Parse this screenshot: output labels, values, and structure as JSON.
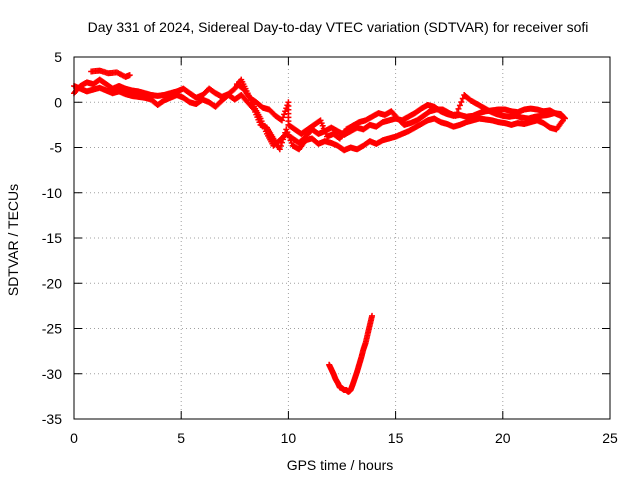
{
  "chart_data": {
    "type": "scatter",
    "title": "Day 331 of 2024, Sidereal Day-to-day VTEC variation (SDTVAR) for receiver sofi",
    "xlabel": "GPS time / hours",
    "ylabel": "SDTVAR / TECUs",
    "xlim": [
      0,
      25
    ],
    "ylim": [
      -35,
      5
    ],
    "xticks": [
      0,
      5,
      10,
      15,
      20,
      25
    ],
    "yticks": [
      5,
      0,
      -5,
      -10,
      -15,
      -20,
      -25,
      -30,
      -35
    ],
    "xtick_labels": [
      "0",
      "5",
      "10",
      "15",
      "20",
      "25"
    ],
    "ytick_labels": [
      "5",
      "0",
      "-5",
      "-10",
      "-15",
      "-20",
      "-25",
      "-30",
      "-35"
    ],
    "grid": true,
    "marker": "+",
    "series_color": "#ff0000",
    "series": [
      {
        "name": "track-a",
        "points": [
          [
            0.0,
            1.0
          ],
          [
            0.3,
            1.8
          ],
          [
            0.6,
            2.2
          ],
          [
            0.9,
            2.0
          ],
          [
            1.2,
            2.5
          ],
          [
            1.5,
            2.0
          ],
          [
            1.8,
            1.5
          ],
          [
            2.1,
            1.8
          ],
          [
            2.4,
            1.5
          ],
          [
            2.7,
            1.3
          ],
          [
            3.0,
            1.2
          ],
          [
            3.3,
            1.0
          ],
          [
            3.6,
            0.8
          ],
          [
            3.9,
            0.7
          ],
          [
            4.2,
            0.8
          ],
          [
            4.5,
            1.0
          ],
          [
            4.8,
            1.2
          ],
          [
            5.1,
            1.5
          ],
          [
            5.4,
            1.0
          ],
          [
            5.7,
            0.5
          ],
          [
            6.0,
            0.8
          ],
          [
            6.3,
            1.5
          ],
          [
            6.6,
            1.0
          ],
          [
            6.9,
            0.6
          ],
          [
            7.2,
            0.9
          ],
          [
            7.5,
            1.5
          ],
          [
            7.8,
            2.5
          ],
          [
            8.1,
            1.0
          ],
          [
            8.4,
            -0.5
          ],
          [
            8.7,
            -1.8
          ],
          [
            9.0,
            -3.5
          ],
          [
            9.3,
            -4.8
          ],
          [
            9.6,
            -4.2
          ],
          [
            9.9,
            -3.5
          ],
          [
            10.2,
            -4.0
          ],
          [
            10.5,
            -4.5
          ],
          [
            10.8,
            -3.8
          ],
          [
            11.1,
            -3.0
          ],
          [
            11.4,
            -3.5
          ],
          [
            11.7,
            -3.2
          ],
          [
            12.0,
            -2.8
          ],
          [
            12.3,
            -3.2
          ],
          [
            12.6,
            -3.6
          ],
          [
            12.9,
            -3.2
          ],
          [
            13.2,
            -2.8
          ],
          [
            13.5,
            -3.0
          ],
          [
            13.8,
            -2.5
          ],
          [
            14.1,
            -2.7
          ],
          [
            14.4,
            -2.2
          ],
          [
            14.7,
            -2.0
          ],
          [
            15.0,
            -1.8
          ],
          [
            15.3,
            -2.0
          ],
          [
            15.6,
            -1.6
          ],
          [
            15.9,
            -1.2
          ],
          [
            16.2,
            -0.7
          ],
          [
            16.5,
            -0.3
          ],
          [
            16.8,
            -0.5
          ],
          [
            17.1,
            -1.0
          ],
          [
            17.4,
            -1.3
          ],
          [
            17.7,
            -1.5
          ],
          [
            18.0,
            -1.4
          ],
          [
            18.3,
            -1.6
          ],
          [
            18.6,
            -1.5
          ],
          [
            18.9,
            -1.2
          ],
          [
            19.2,
            -1.0
          ],
          [
            19.5,
            -0.9
          ],
          [
            19.8,
            -0.8
          ],
          [
            20.1,
            -0.8
          ],
          [
            20.4,
            -1.0
          ],
          [
            20.7,
            -1.1
          ],
          [
            21.0,
            -0.8
          ],
          [
            21.3,
            -0.7
          ],
          [
            21.6,
            -0.8
          ],
          [
            21.9,
            -1.0
          ],
          [
            22.2,
            -0.9
          ],
          [
            22.5,
            -1.3
          ],
          [
            22.8,
            -1.6
          ]
        ]
      },
      {
        "name": "track-b",
        "points": [
          [
            0.0,
            1.8
          ],
          [
            0.3,
            1.5
          ],
          [
            0.6,
            1.2
          ],
          [
            0.9,
            1.4
          ],
          [
            1.2,
            1.6
          ],
          [
            1.5,
            1.3
          ],
          [
            1.8,
            1.0
          ],
          [
            2.1,
            1.2
          ],
          [
            2.4,
            0.9
          ],
          [
            2.7,
            0.7
          ],
          [
            3.0,
            0.6
          ],
          [
            3.3,
            0.5
          ],
          [
            3.6,
            0.3
          ],
          [
            3.9,
            -0.3
          ],
          [
            4.2,
            0.2
          ],
          [
            4.5,
            0.5
          ],
          [
            4.8,
            0.8
          ],
          [
            5.1,
            0.5
          ],
          [
            5.4,
            0.0
          ],
          [
            5.7,
            -0.2
          ],
          [
            6.0,
            0.3
          ],
          [
            6.3,
            0.0
          ],
          [
            6.6,
            -0.5
          ],
          [
            6.9,
            0.2
          ],
          [
            7.2,
            0.8
          ],
          [
            7.5,
            0.3
          ],
          [
            7.8,
            0.8
          ],
          [
            8.1,
            0.0
          ],
          [
            8.4,
            -0.8
          ],
          [
            8.7,
            -2.5
          ],
          [
            9.0,
            -2.8
          ],
          [
            9.3,
            -4.0
          ],
          [
            9.6,
            -5.2
          ],
          [
            9.9,
            -3.0
          ],
          [
            10.2,
            -4.8
          ],
          [
            10.5,
            -5.2
          ],
          [
            10.8,
            -4.2
          ],
          [
            11.1,
            -4.0
          ],
          [
            11.4,
            -4.6
          ],
          [
            11.7,
            -4.3
          ],
          [
            12.0,
            -4.5
          ],
          [
            12.3,
            -4.8
          ],
          [
            12.6,
            -5.3
          ],
          [
            12.9,
            -5.0
          ],
          [
            13.2,
            -5.2
          ],
          [
            13.5,
            -4.8
          ],
          [
            13.8,
            -4.3
          ],
          [
            14.1,
            -4.6
          ],
          [
            14.4,
            -4.2
          ],
          [
            14.7,
            -4.0
          ],
          [
            15.0,
            -3.8
          ],
          [
            15.3,
            -3.5
          ],
          [
            15.6,
            -3.2
          ],
          [
            15.9,
            -2.8
          ],
          [
            16.2,
            -2.4
          ],
          [
            16.5,
            -2.0
          ],
          [
            16.8,
            -1.8
          ],
          [
            17.1,
            -2.2
          ],
          [
            17.4,
            -2.4
          ],
          [
            17.7,
            -2.7
          ],
          [
            18.0,
            -2.5
          ],
          [
            18.3,
            -2.2
          ],
          [
            18.6,
            -2.0
          ],
          [
            18.9,
            -1.8
          ],
          [
            19.2,
            -1.9
          ],
          [
            19.5,
            -2.0
          ],
          [
            19.8,
            -2.2
          ],
          [
            20.1,
            -2.3
          ],
          [
            20.4,
            -2.5
          ],
          [
            20.7,
            -2.3
          ],
          [
            21.0,
            -2.4
          ],
          [
            21.3,
            -2.2
          ],
          [
            21.6,
            -2.0
          ],
          [
            21.9,
            -2.3
          ],
          [
            22.2,
            -2.8
          ],
          [
            22.5,
            -3.0
          ],
          [
            22.8,
            -2.0
          ]
        ]
      },
      {
        "name": "track-c",
        "points": [
          [
            0.8,
            3.4
          ],
          [
            1.2,
            3.5
          ],
          [
            1.6,
            3.2
          ],
          [
            2.0,
            3.3
          ],
          [
            2.4,
            2.8
          ],
          [
            2.6,
            3.0
          ],
          [
            7.6,
            2.0
          ],
          [
            7.9,
            1.5
          ],
          [
            8.2,
            0.5
          ],
          [
            8.5,
            0.0
          ],
          [
            8.8,
            -0.6
          ],
          [
            9.1,
            -0.8
          ],
          [
            9.4,
            -1.5
          ],
          [
            9.7,
            -2.0
          ],
          [
            10.0,
            0.0
          ],
          [
            10.0,
            -2.5
          ],
          [
            10.3,
            -3.0
          ],
          [
            10.6,
            -3.5
          ],
          [
            10.9,
            -3.0
          ],
          [
            11.2,
            -2.5
          ],
          [
            11.5,
            -2.0
          ],
          [
            11.8,
            -3.8
          ],
          [
            12.1,
            -3.5
          ],
          [
            12.4,
            -4.0
          ],
          [
            12.7,
            -3.0
          ],
          [
            13.0,
            -2.6
          ],
          [
            13.3,
            -2.2
          ],
          [
            13.6,
            -2.0
          ],
          [
            13.9,
            -1.6
          ],
          [
            14.2,
            -1.2
          ],
          [
            14.5,
            -1.4
          ],
          [
            14.8,
            -1.0
          ],
          [
            15.1,
            -1.8
          ],
          [
            15.4,
            -2.5
          ],
          [
            15.7,
            -2.3
          ],
          [
            16.0,
            -2.0
          ],
          [
            16.3,
            -1.5
          ],
          [
            16.6,
            -1.0
          ],
          [
            16.9,
            -0.8
          ],
          [
            17.2,
            -0.8
          ],
          [
            17.5,
            -1.2
          ],
          [
            17.8,
            -1.5
          ],
          [
            18.2,
            0.8
          ],
          [
            18.5,
            0.2
          ],
          [
            18.8,
            -0.2
          ],
          [
            19.1,
            -0.6
          ],
          [
            19.4,
            -1.0
          ],
          [
            19.7,
            -1.3
          ],
          [
            20.0,
            -1.5
          ],
          [
            20.3,
            -1.6
          ],
          [
            20.6,
            -1.5
          ],
          [
            20.9,
            -1.7
          ],
          [
            21.2,
            -1.8
          ],
          [
            21.5,
            -1.6
          ],
          [
            21.8,
            -1.5
          ],
          [
            22.1,
            -1.4
          ],
          [
            22.4,
            -1.2
          ],
          [
            22.7,
            -1.3
          ],
          [
            22.9,
            -1.8
          ]
        ]
      },
      {
        "name": "track-d",
        "points": [
          [
            11.9,
            -29.0
          ],
          [
            12.0,
            -29.5
          ],
          [
            12.1,
            -30.0
          ],
          [
            12.2,
            -30.6
          ],
          [
            12.3,
            -31.0
          ],
          [
            12.4,
            -31.5
          ],
          [
            12.5,
            -31.6
          ],
          [
            12.6,
            -31.8
          ],
          [
            12.7,
            -31.8
          ],
          [
            12.8,
            -32.0
          ],
          [
            12.9,
            -31.8
          ],
          [
            13.0,
            -31.2
          ],
          [
            13.1,
            -30.5
          ],
          [
            13.2,
            -29.8
          ],
          [
            13.3,
            -29.0
          ],
          [
            13.4,
            -28.2
          ],
          [
            13.5,
            -27.3
          ],
          [
            13.6,
            -26.6
          ],
          [
            13.7,
            -25.6
          ],
          [
            13.8,
            -24.6
          ],
          [
            13.9,
            -23.6
          ]
        ]
      }
    ]
  }
}
